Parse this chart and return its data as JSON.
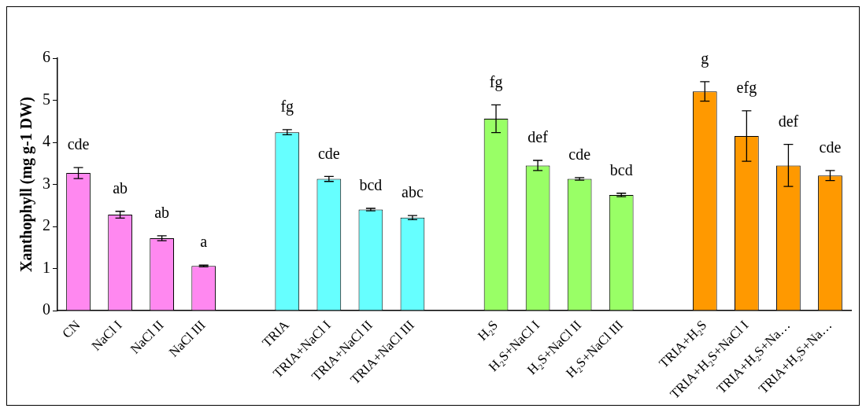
{
  "chart_data": {
    "type": "bar",
    "ylabel": "Xanthophyll (mg g-1 DW)",
    "categories": [
      "CN",
      "NaCl I",
      "NaCl II",
      "NaCl III",
      null,
      "TRIA",
      "TRIA+NaCl I",
      "TRIA+NaCl II",
      "TRIA+NaCl III",
      null,
      "H₂S",
      "H₂S+NaCl I",
      "H₂S+NaCl II",
      "H₂S+NaCl III",
      null,
      "TRIA+H₂S",
      "TRIA+H₂S+NaCl I",
      "TRIA+H₂S+Na…",
      "TRIA+H₂S+Na…"
    ],
    "values": [
      3.27,
      2.28,
      1.72,
      1.06,
      null,
      4.24,
      3.13,
      2.4,
      2.21,
      null,
      4.56,
      3.45,
      3.13,
      2.75,
      null,
      5.21,
      4.15,
      3.45,
      3.21
    ],
    "errors": [
      0.13,
      0.08,
      0.06,
      0.02,
      null,
      0.06,
      0.06,
      0.03,
      0.05,
      null,
      0.33,
      0.12,
      0.03,
      0.04,
      null,
      0.23,
      0.6,
      0.5,
      0.12
    ],
    "colors": [
      "#ff88f0",
      "#ff88f0",
      "#ff88f0",
      "#ff88f0",
      null,
      "#66ffff",
      "#66ffff",
      "#66ffff",
      "#66ffff",
      null,
      "#99ff66",
      "#99ff66",
      "#99ff66",
      "#99ff66",
      null,
      "#ff9900",
      "#ff9900",
      "#ff9900",
      "#ff9900"
    ],
    "value_labels": [
      "cde",
      "ab",
      "ab",
      "a",
      null,
      "fg",
      "cde",
      "bcd",
      "abc",
      null,
      "fg",
      "def",
      "cde",
      "bcd",
      null,
      "g",
      "efg",
      "def",
      "cde"
    ],
    "ylim": [
      0,
      6
    ],
    "yticks": [
      0,
      1,
      2,
      3,
      4,
      5,
      6
    ],
    "grid": false,
    "legend": false
  }
}
